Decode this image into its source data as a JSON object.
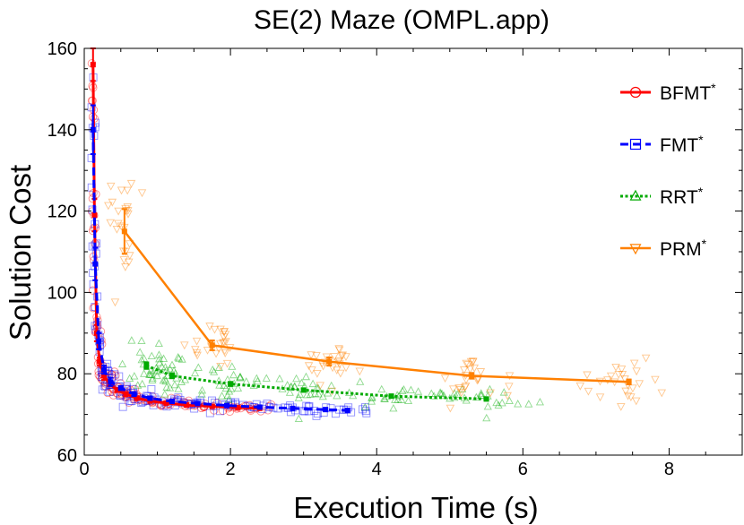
{
  "chart_data": {
    "type": "line",
    "title": "SE(2) Maze (OMPL.app)",
    "xlabel": "Execution Time (s)",
    "ylabel": "Solution Cost",
    "xlim": [
      0,
      9
    ],
    "ylim": [
      60,
      160
    ],
    "xticks": [
      0,
      2,
      4,
      6,
      8
    ],
    "yticks": [
      60,
      80,
      100,
      120,
      140,
      160
    ],
    "grid": false,
    "legend_position": "top-right",
    "series": [
      {
        "name": "BFMT*",
        "color": "#ff0000",
        "marker": "circle",
        "line_style": "solid",
        "x": [
          0.12,
          0.14,
          0.17,
          0.21,
          0.27,
          0.35,
          0.45,
          0.57,
          0.72,
          0.9,
          1.12,
          1.4,
          1.75,
          2.1,
          2.4
        ],
        "y": [
          156,
          119,
          90,
          83,
          79.5,
          77.5,
          76,
          75,
          74,
          73.3,
          72.8,
          72.3,
          72,
          71.7,
          71.5
        ],
        "err": [
          4,
          4,
          2,
          1,
          1,
          0.5,
          0.5,
          0.5,
          0.4,
          0.4,
          0.4,
          0.3,
          0.3,
          0.3,
          0.3
        ]
      },
      {
        "name": "FMT*",
        "color": "#0000ff",
        "marker": "square",
        "line_style": "dashed",
        "x": [
          0.12,
          0.15,
          0.2,
          0.27,
          0.36,
          0.5,
          0.68,
          0.9,
          1.2,
          1.55,
          1.95,
          2.4,
          2.85,
          3.3,
          3.6
        ],
        "y": [
          140,
          107,
          88,
          81,
          78,
          76.5,
          75,
          74,
          73.2,
          72.7,
          72.2,
          71.8,
          71.5,
          71.2,
          71
        ],
        "err": [
          6,
          4,
          2,
          1,
          1,
          0.5,
          0.5,
          0.4,
          0.4,
          0.3,
          0.3,
          0.3,
          0.3,
          0.3,
          0.3
        ]
      },
      {
        "name": "RRT*",
        "color": "#00aa00",
        "marker": "triangle-up",
        "line_style": "dotted",
        "x": [
          0.85,
          1.2,
          2.0,
          3.0,
          4.2,
          5.5
        ],
        "y": [
          82,
          79.5,
          77.5,
          76,
          74.5,
          73.8
        ],
        "err": [
          0.8,
          0.6,
          0.5,
          0.4,
          0.4,
          0.4
        ]
      },
      {
        "name": "PRM*",
        "color": "#ff8000",
        "marker": "triangle-down",
        "line_style": "solid",
        "x": [
          0.55,
          1.75,
          3.35,
          5.3,
          7.45
        ],
        "y": [
          115,
          87,
          83,
          79.5,
          78
        ],
        "err": [
          5.5,
          1.2,
          1,
          0.7,
          0.6
        ]
      }
    ]
  }
}
